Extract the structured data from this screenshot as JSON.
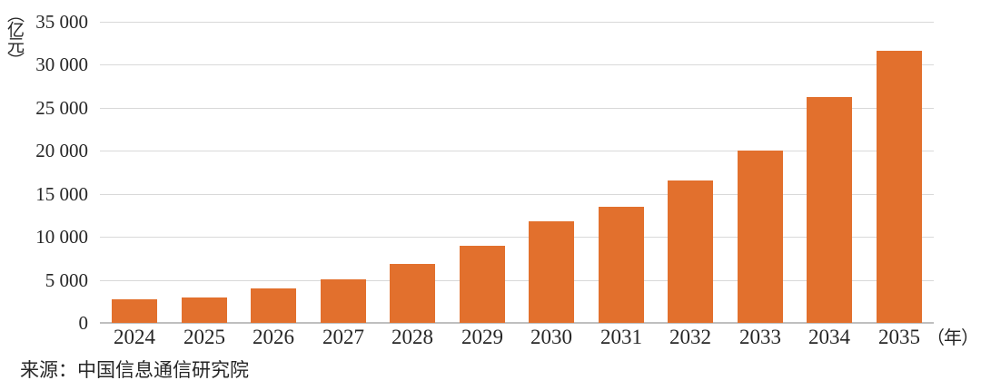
{
  "chart_data": {
    "type": "bar",
    "title": "",
    "y_axis_unit": "（亿元）",
    "x_axis_unit": "（年）",
    "source_note": "来源：中国信息通信研究院",
    "categories": [
      "2024",
      "2025",
      "2026",
      "2027",
      "2028",
      "2029",
      "2030",
      "2031",
      "2032",
      "2033",
      "2034",
      "2035"
    ],
    "values": [
      2700,
      3000,
      4000,
      5100,
      6800,
      9000,
      11800,
      13500,
      16500,
      20000,
      26300,
      31600
    ],
    "ylim": [
      0,
      35000
    ],
    "ytick_interval": 5000,
    "ytick_labels": [
      "0",
      "5 000",
      "10 000",
      "15 000",
      "20 000",
      "25 000",
      "30 000",
      "35 000"
    ],
    "xlabel": "",
    "ylabel": "（亿元）",
    "grid": "horizontal",
    "legend_position": "none",
    "bar_color": "#E2702D",
    "gridline_color": "#D9D9D9",
    "axis_line_color": "#BFBFBF",
    "text_color": "#262626"
  }
}
